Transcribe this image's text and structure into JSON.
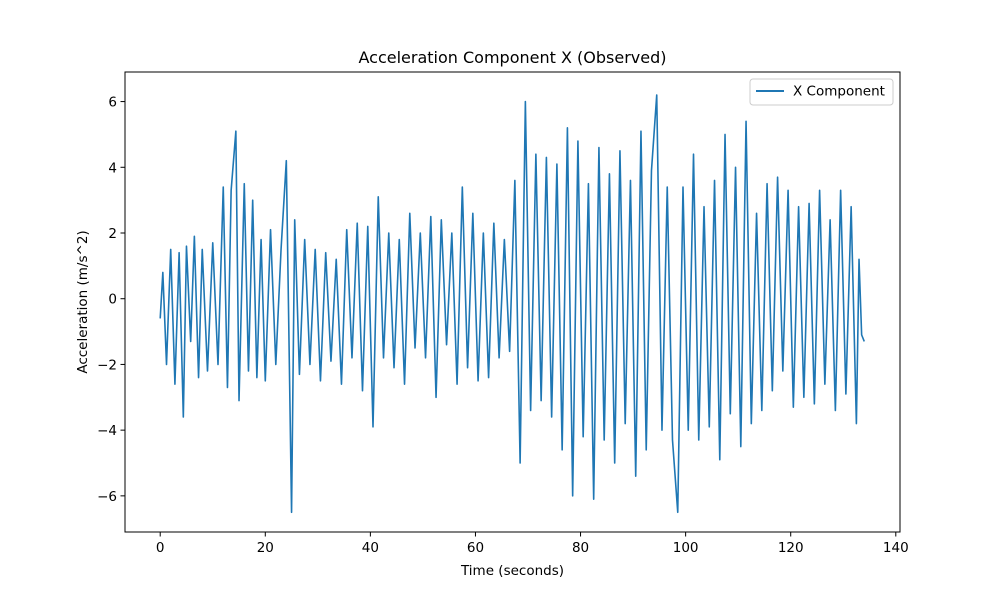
{
  "chart_data": {
    "type": "line",
    "title": "Acceleration Component X (Observed)",
    "xlabel": "Time (seconds)",
    "ylabel": "Acceleration (m/s^2)",
    "xlim": [
      -6.7,
      140.8
    ],
    "ylim": [
      -7.1,
      6.9
    ],
    "xticks": [
      0,
      20,
      40,
      60,
      80,
      100,
      120,
      140
    ],
    "xtick_labels": [
      "0",
      "20",
      "40",
      "60",
      "80",
      "100",
      "120",
      "140"
    ],
    "yticks": [
      -6,
      -4,
      -2,
      0,
      2,
      4,
      6
    ],
    "ytick_labels": [
      "−6",
      "−4",
      "−2",
      "0",
      "2",
      "4",
      "6"
    ],
    "grid": false,
    "legend_position": "top-right",
    "series": [
      {
        "name": "X Component",
        "color": "#1f77b4",
        "x": [
          0.0,
          0.5,
          1.2,
          2.0,
          2.8,
          3.6,
          4.4,
          5.0,
          5.8,
          6.5,
          7.3,
          8.0,
          9.0,
          10.0,
          11.0,
          12.0,
          12.8,
          13.5,
          14.4,
          15.0,
          16.0,
          16.8,
          17.6,
          18.4,
          19.2,
          20.0,
          21.0,
          22.0,
          23.0,
          24.0,
          25.0,
          25.6,
          26.5,
          27.5,
          28.5,
          29.5,
          30.5,
          31.5,
          32.5,
          33.5,
          34.5,
          35.5,
          36.5,
          37.5,
          38.5,
          39.5,
          40.5,
          41.5,
          42.5,
          43.5,
          44.5,
          45.5,
          46.5,
          47.5,
          48.5,
          49.5,
          50.5,
          51.5,
          52.5,
          53.5,
          54.5,
          55.5,
          56.5,
          57.5,
          58.5,
          59.5,
          60.5,
          61.5,
          62.5,
          63.5,
          64.5,
          65.5,
          66.5,
          67.5,
          68.5,
          69.5,
          70.5,
          71.5,
          72.5,
          73.5,
          74.5,
          75.5,
          76.5,
          77.5,
          78.5,
          79.5,
          80.5,
          81.5,
          82.5,
          83.5,
          84.5,
          85.5,
          86.5,
          87.5,
          88.5,
          89.5,
          90.5,
          91.5,
          92.5,
          93.5,
          94.5,
          95.5,
          96.5,
          97.5,
          98.5,
          99.5,
          100.5,
          101.5,
          102.5,
          103.5,
          104.5,
          105.5,
          106.5,
          107.5,
          108.5,
          109.5,
          110.5,
          111.5,
          112.5,
          113.5,
          114.5,
          115.5,
          116.5,
          117.5,
          118.5,
          119.5,
          120.5,
          121.5,
          122.5,
          123.5,
          124.5,
          125.5,
          126.5,
          127.5,
          128.5,
          129.5,
          130.5,
          131.5,
          132.5,
          133.0,
          133.5,
          134.0
        ],
        "y": [
          -0.6,
          0.8,
          -2.0,
          1.5,
          -2.6,
          1.4,
          -3.6,
          1.6,
          -1.3,
          1.9,
          -2.4,
          1.5,
          -2.2,
          1.7,
          -2.0,
          3.4,
          -2.7,
          3.3,
          5.1,
          -3.1,
          3.5,
          -2.2,
          3.0,
          -2.4,
          1.8,
          -2.5,
          2.1,
          -2.0,
          1.5,
          4.2,
          -6.5,
          2.4,
          -2.3,
          1.8,
          -2.0,
          1.5,
          -2.5,
          1.4,
          -1.9,
          1.2,
          -2.6,
          2.1,
          -1.8,
          2.3,
          -2.8,
          2.2,
          -3.9,
          3.1,
          -1.8,
          2.0,
          -2.1,
          1.8,
          -2.6,
          2.6,
          -1.5,
          2.0,
          -1.8,
          2.5,
          -3.0,
          2.4,
          -1.4,
          2.0,
          -2.6,
          3.4,
          -2.1,
          2.6,
          -2.5,
          2.0,
          -2.4,
          2.3,
          -1.8,
          1.8,
          -1.6,
          3.6,
          -5.0,
          6.0,
          -3.4,
          4.4,
          -3.1,
          4.3,
          -3.6,
          4.1,
          -4.6,
          5.2,
          -6.0,
          4.8,
          -4.2,
          3.5,
          -6.1,
          4.6,
          -4.3,
          3.8,
          -5.0,
          4.5,
          -3.8,
          3.6,
          -5.4,
          5.1,
          -4.6,
          3.9,
          6.2,
          -4.0,
          3.4,
          -4.3,
          -6.5,
          3.4,
          -4.0,
          4.4,
          -4.3,
          2.8,
          -3.9,
          3.6,
          -4.9,
          5.0,
          -3.5,
          4.0,
          -4.5,
          5.4,
          -3.8,
          2.6,
          -3.4,
          3.5,
          -2.8,
          3.7,
          -2.2,
          3.3,
          -3.3,
          2.8,
          -3.0,
          2.9,
          -3.2,
          3.3,
          -2.6,
          2.4,
          -3.4,
          3.3,
          -2.9,
          2.8,
          -3.8,
          1.2,
          -1.1,
          -1.3
        ]
      }
    ]
  }
}
